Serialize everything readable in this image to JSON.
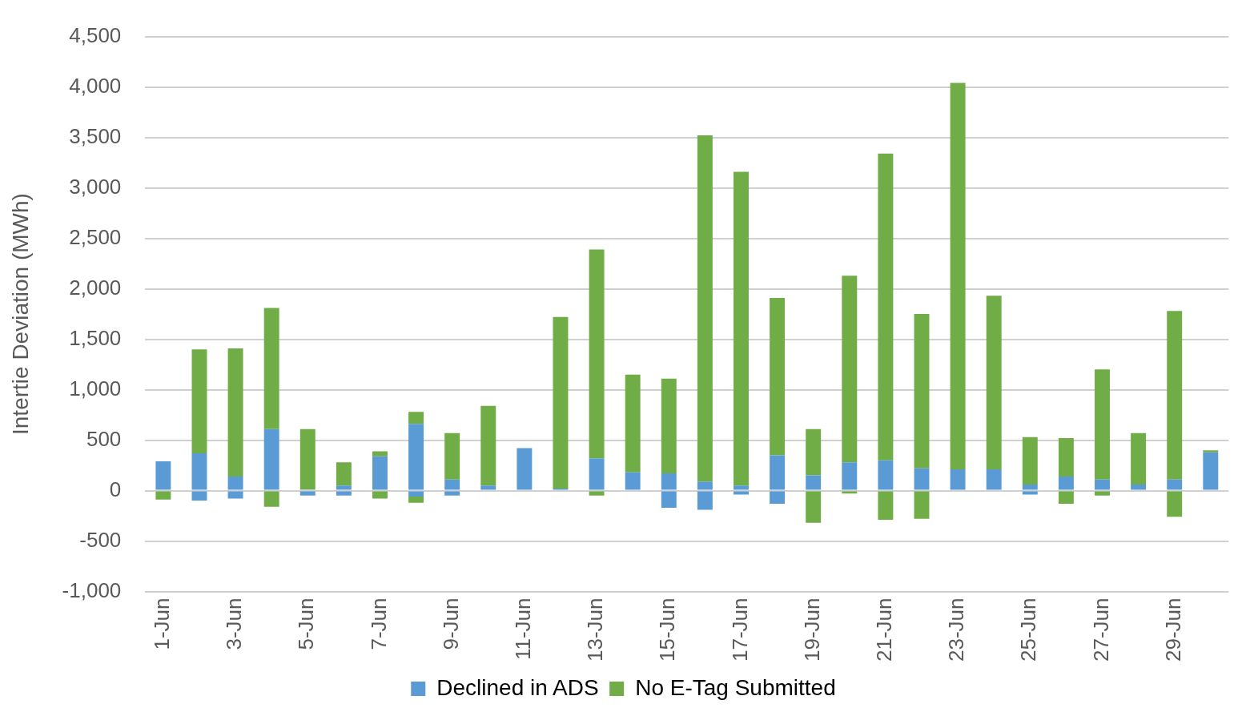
{
  "chart_data": {
    "type": "bar",
    "stacked": true,
    "ylabel": "Intertie Deviation (MWh)",
    "categories": [
      "1-Jun",
      null,
      "3-Jun",
      null,
      "5-Jun",
      null,
      "7-Jun",
      null,
      "9-Jun",
      null,
      "11-Jun",
      null,
      "13-Jun",
      null,
      "15-Jun",
      null,
      "17-Jun",
      null,
      "19-Jun",
      null,
      "21-Jun",
      null,
      "23-Jun",
      null,
      "25-Jun",
      null,
      "27-Jun",
      null,
      "29-Jun",
      null
    ],
    "series": [
      {
        "name": "Declined in ADS",
        "color": "#5b9bd5",
        "values": [
          290,
          370,
          140,
          610,
          10,
          50,
          340,
          660,
          110,
          50,
          420,
          20,
          320,
          180,
          170,
          90,
          50,
          350,
          150,
          280,
          300,
          220,
          210,
          210,
          60,
          140,
          110,
          60,
          110,
          380
        ]
      },
      {
        "name": "No E-Tag Submitted",
        "color": "#70ad47",
        "values": [
          null,
          1030,
          1270,
          1200,
          600,
          230,
          50,
          120,
          460,
          790,
          null,
          1700,
          2070,
          970,
          940,
          3430,
          3110,
          1560,
          460,
          1850,
          3040,
          1530,
          3830,
          1720,
          470,
          380,
          1090,
          510,
          1670,
          20
        ]
      },
      {
        "color": "#5b9bd5",
        "values": [
          null,
          -100,
          -80,
          null,
          -50,
          -50,
          null,
          -60,
          -50,
          null,
          null,
          null,
          null,
          null,
          -170,
          -190,
          -40,
          -130,
          null,
          null,
          null,
          null,
          null,
          null,
          -40,
          null,
          null,
          null,
          null,
          null
        ]
      },
      {
        "color": "#70ad47",
        "values": [
          -90,
          null,
          null,
          -160,
          null,
          null,
          -80,
          -60,
          null,
          null,
          null,
          null,
          -50,
          null,
          null,
          null,
          null,
          null,
          -320,
          -30,
          -290,
          -280,
          null,
          null,
          null,
          -130,
          -50,
          null,
          -260,
          null
        ]
      }
    ],
    "ylim": [
      -1000,
      4500
    ],
    "yticks": [
      {
        "value": -1000,
        "label": "-1,000"
      },
      {
        "value": -500,
        "label": "-500"
      },
      0,
      500,
      {
        "value": 1000,
        "label": "1,000"
      },
      {
        "value": 1500,
        "label": "1,500"
      },
      {
        "value": 2000,
        "label": "2,000"
      },
      {
        "value": 2500,
        "label": "2,500"
      },
      {
        "value": 3000,
        "label": "3,000"
      },
      {
        "value": 3500,
        "label": "3,500"
      },
      {
        "value": 4000,
        "label": "4,000"
      },
      {
        "value": 4500,
        "label": "4,500"
      }
    ],
    "grid": "y",
    "legend": "bottom"
  }
}
